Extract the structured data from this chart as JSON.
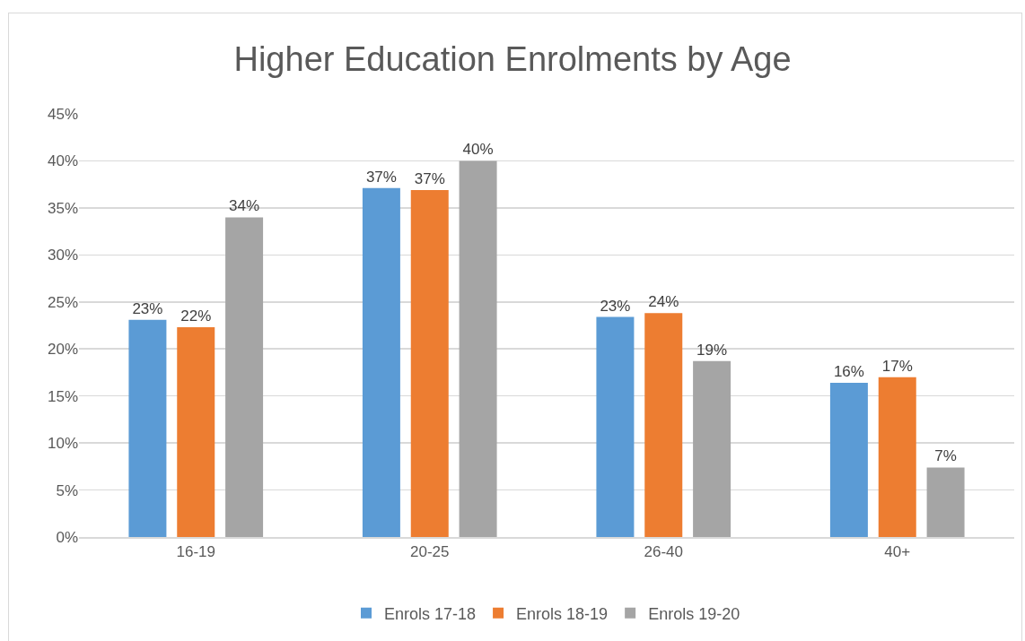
{
  "chart_data": {
    "type": "bar",
    "title": "Higher Education Enrolments by Age",
    "categories": [
      "16-19",
      "20-25",
      "26-40",
      "40+"
    ],
    "series": [
      {
        "name": "Enrols 17-18",
        "color": "#5b9bd5",
        "values": [
          23.1,
          37.1,
          23.4,
          16.4
        ],
        "value_labels": [
          "23%",
          "37%",
          "23%",
          "16%"
        ]
      },
      {
        "name": "Enrols 18-19",
        "color": "#ed7d31",
        "values": [
          22.3,
          36.9,
          23.8,
          17.0
        ],
        "value_labels": [
          "22%",
          "37%",
          "24%",
          "17%"
        ]
      },
      {
        "name": "Enrols 19-20",
        "color": "#a5a5a5",
        "values": [
          34.0,
          40.0,
          18.7,
          7.4
        ],
        "value_labels": [
          "34%",
          "40%",
          "19%",
          "7%"
        ]
      }
    ],
    "ylim": [
      0,
      45
    ],
    "yticks": [
      {
        "value": 0,
        "label": "0%"
      },
      {
        "value": 5,
        "label": "5%"
      },
      {
        "value": 10,
        "label": "10%"
      },
      {
        "value": 15,
        "label": "15%"
      },
      {
        "value": 20,
        "label": "20%"
      },
      {
        "value": 25,
        "label": "25%"
      },
      {
        "value": 30,
        "label": "30%"
      },
      {
        "value": 35,
        "label": "35%"
      },
      {
        "value": 40,
        "label": "40%"
      },
      {
        "value": 45,
        "label": "45%"
      }
    ],
    "grid": "y",
    "legend": "bottom"
  }
}
